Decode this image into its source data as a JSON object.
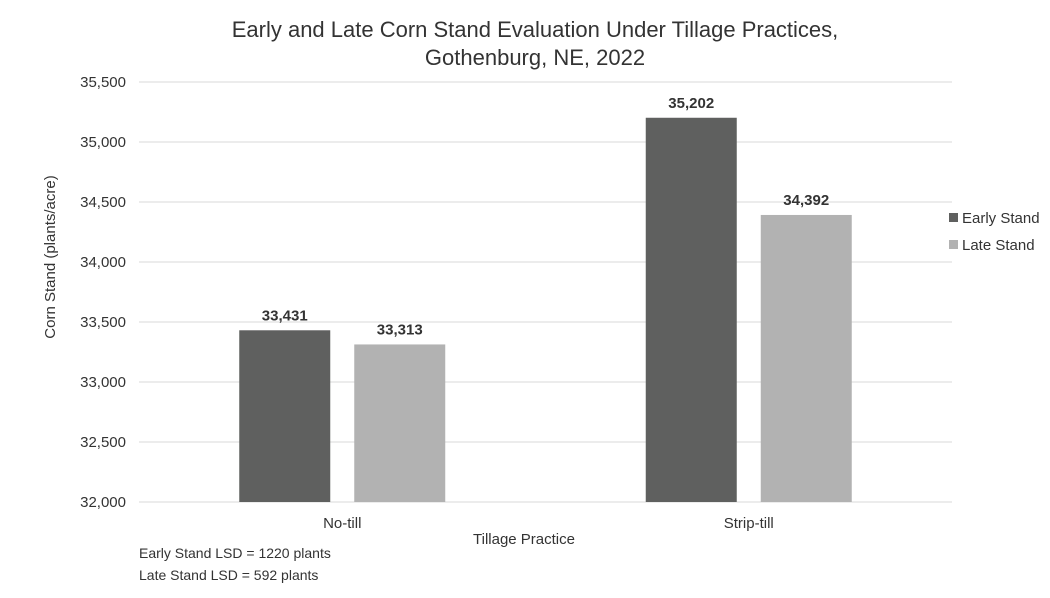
{
  "chart_data": {
    "type": "bar",
    "title": [
      "Early and Late Corn Stand Evaluation Under Tillage Practices,",
      "Gothenburg, NE, 2022"
    ],
    "xlabel": "Tillage Practice",
    "ylabel": "Corn Stand (plants/acre)",
    "categories": [
      "No-till",
      "Strip-till"
    ],
    "series": [
      {
        "name": "Early Stand",
        "values": [
          33431,
          35202
        ],
        "labels": [
          "33,431",
          "35,202"
        ],
        "color": "#5f605f"
      },
      {
        "name": "Late Stand",
        "values": [
          33313,
          34392
        ],
        "labels": [
          "33,313",
          "34,392"
        ],
        "color": "#b2b2b2"
      }
    ],
    "ylim": [
      32000,
      35500
    ],
    "yticks": [
      32000,
      32500,
      33000,
      33500,
      34000,
      34500,
      35000,
      35500
    ],
    "ytick_labels": [
      "32,000",
      "32,500",
      "33,000",
      "33,500",
      "34,000",
      "34,500",
      "35,000",
      "35,500"
    ],
    "grid": true,
    "legend_position": "right",
    "notes": [
      "Early Stand LSD = 1220 plants",
      "Late Stand LSD = 592 plants"
    ]
  }
}
